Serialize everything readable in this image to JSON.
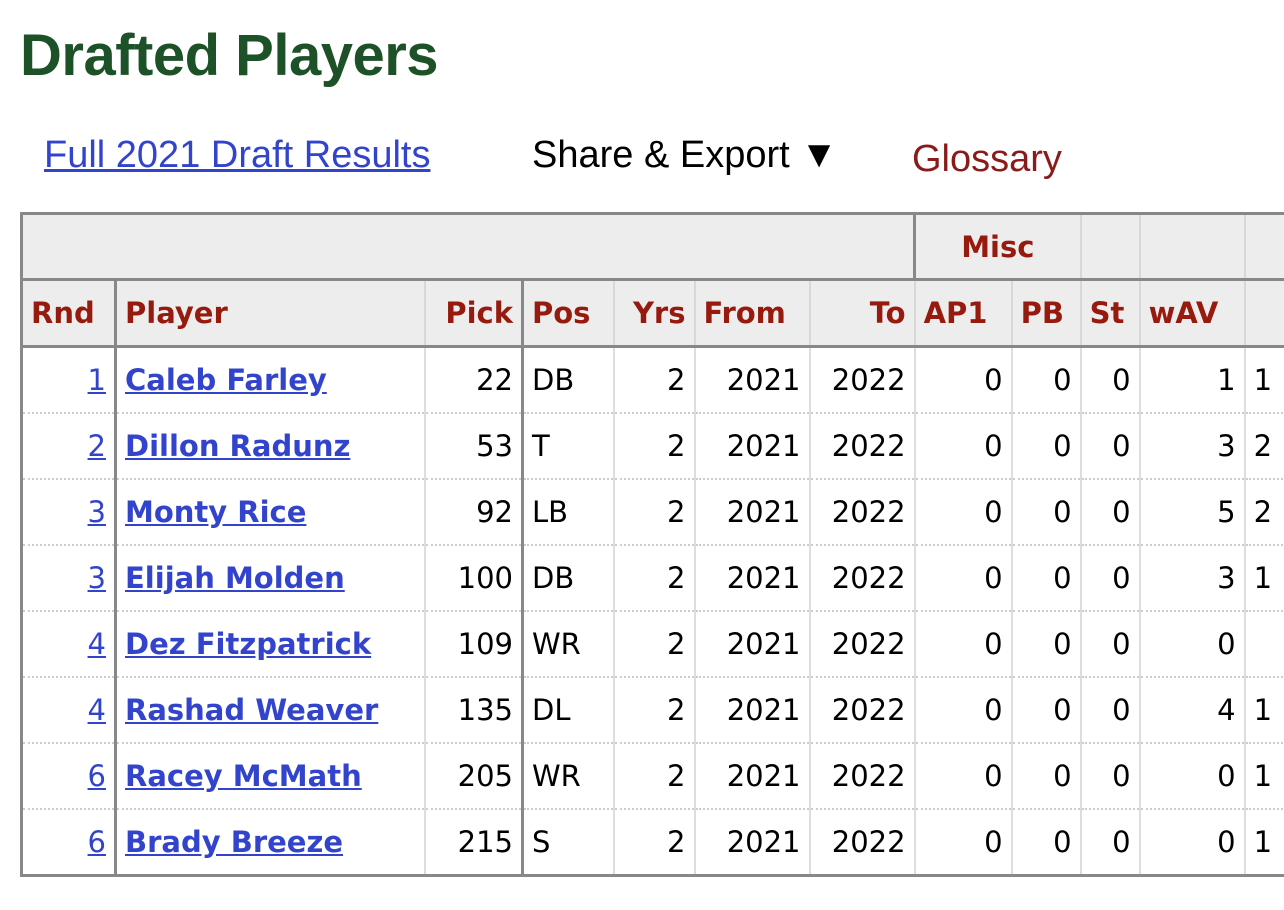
{
  "title": "Drafted Players",
  "links": {
    "full_results": "Full 2021 Draft Results",
    "share_export": "Share & Export ▼",
    "glossary": "Glossary"
  },
  "colors": {
    "title": "#1d5128",
    "link": "#3344cc",
    "header_text": "#961a0e",
    "header_bg": "#ededed"
  },
  "table": {
    "group_header": "Misc",
    "columns": [
      "Rnd",
      "Player",
      "Pick",
      "Pos",
      "Yrs",
      "From",
      "To",
      "AP1",
      "PB",
      "St",
      "wAV",
      ""
    ],
    "rows": [
      {
        "rnd": "1",
        "player": "Caleb Farley",
        "pick": "22",
        "pos": "DB",
        "yrs": "2",
        "from": "2021",
        "to": "2022",
        "ap1": "0",
        "pb": "0",
        "st": "0",
        "wav": "1",
        "next": "1"
      },
      {
        "rnd": "2",
        "player": "Dillon Radunz",
        "pick": "53",
        "pos": "T",
        "yrs": "2",
        "from": "2021",
        "to": "2022",
        "ap1": "0",
        "pb": "0",
        "st": "0",
        "wav": "3",
        "next": "2"
      },
      {
        "rnd": "3",
        "player": "Monty Rice",
        "pick": "92",
        "pos": "LB",
        "yrs": "2",
        "from": "2021",
        "to": "2022",
        "ap1": "0",
        "pb": "0",
        "st": "0",
        "wav": "5",
        "next": "2"
      },
      {
        "rnd": "3",
        "player": "Elijah Molden",
        "pick": "100",
        "pos": "DB",
        "yrs": "2",
        "from": "2021",
        "to": "2022",
        "ap1": "0",
        "pb": "0",
        "st": "0",
        "wav": "3",
        "next": "1"
      },
      {
        "rnd": "4",
        "player": "Dez Fitzpatrick",
        "pick": "109",
        "pos": "WR",
        "yrs": "2",
        "from": "2021",
        "to": "2022",
        "ap1": "0",
        "pb": "0",
        "st": "0",
        "wav": "0",
        "next": ""
      },
      {
        "rnd": "4",
        "player": "Rashad Weaver",
        "pick": "135",
        "pos": "DL",
        "yrs": "2",
        "from": "2021",
        "to": "2022",
        "ap1": "0",
        "pb": "0",
        "st": "0",
        "wav": "4",
        "next": "1"
      },
      {
        "rnd": "6",
        "player": "Racey McMath",
        "pick": "205",
        "pos": "WR",
        "yrs": "2",
        "from": "2021",
        "to": "2022",
        "ap1": "0",
        "pb": "0",
        "st": "0",
        "wav": "0",
        "next": "1"
      },
      {
        "rnd": "6",
        "player": "Brady Breeze",
        "pick": "215",
        "pos": "S",
        "yrs": "2",
        "from": "2021",
        "to": "2022",
        "ap1": "0",
        "pb": "0",
        "st": "0",
        "wav": "0",
        "next": "1"
      }
    ]
  }
}
